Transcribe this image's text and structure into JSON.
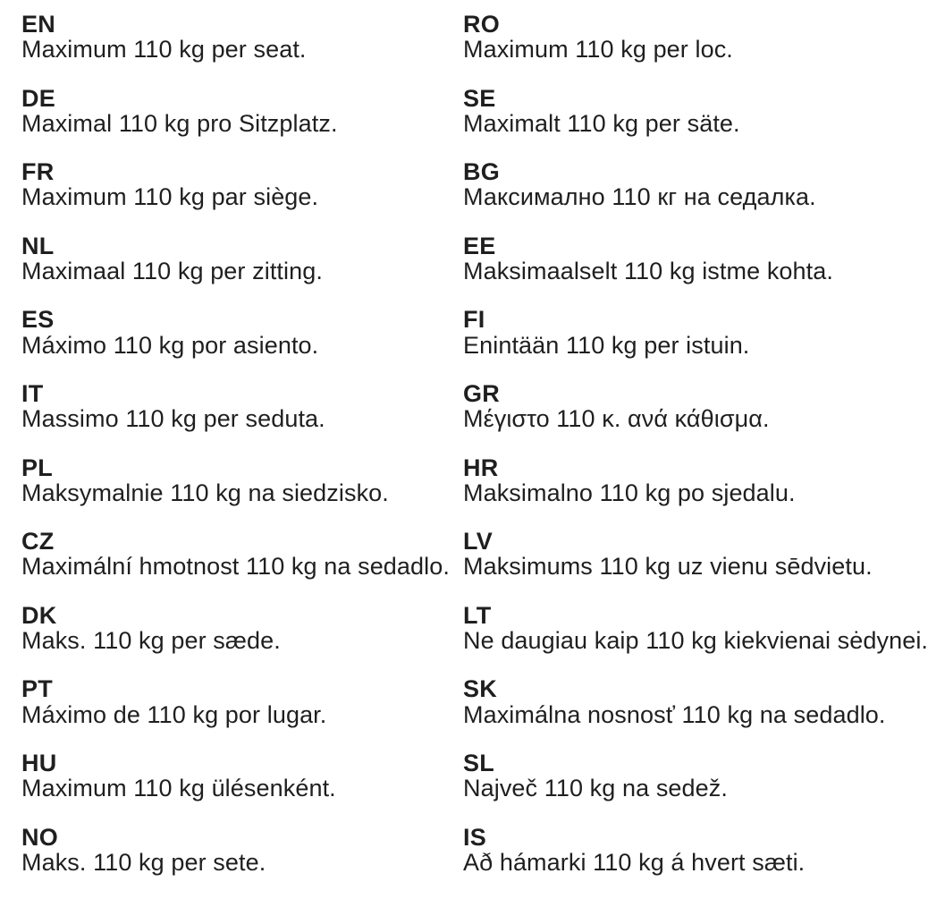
{
  "page": {
    "background": "#ffffff",
    "text_color": "#1f1f1f"
  },
  "columns": [
    {
      "entries": [
        {
          "code": "EN",
          "text": "Maximum 110 kg per seat."
        },
        {
          "code": "DE",
          "text": "Maximal 110 kg pro Sitzplatz."
        },
        {
          "code": "FR",
          "text": "Maximum 110 kg par siège."
        },
        {
          "code": "NL",
          "text": "Maximaal 110 kg per zitting."
        },
        {
          "code": "ES",
          "text": "Máximo 110 kg por asiento."
        },
        {
          "code": "IT",
          "text": "Massimo 110 kg per seduta."
        },
        {
          "code": "PL",
          "text": "Maksymalnie 110 kg na siedzisko."
        },
        {
          "code": "CZ",
          "text": "Maximální hmotnost 110 kg na sedadlo."
        },
        {
          "code": "DK",
          "text": "Maks. 110 kg per sæde."
        },
        {
          "code": "PT",
          "text": "Máximo de 110 kg por lugar."
        },
        {
          "code": "HU",
          "text": "Maximum 110 kg ülésenként."
        },
        {
          "code": "NO",
          "text": "Maks. 110 kg per sete."
        }
      ]
    },
    {
      "entries": [
        {
          "code": "RO",
          "text": "Maximum 110 kg per loc."
        },
        {
          "code": "SE",
          "text": "Maximalt 110 kg per säte."
        },
        {
          "code": "BG",
          "text": "Максимално 110 кг на седалка."
        },
        {
          "code": "EE",
          "text": "Maksimaalselt 110 kg istme kohta."
        },
        {
          "code": "FI",
          "text": "Enintään 110 kg per istuin."
        },
        {
          "code": "GR",
          "text": "Μέγιστο 110 κ. ανά κάθισμα."
        },
        {
          "code": "HR",
          "text": "Maksimalno 110 kg po sjedalu."
        },
        {
          "code": "LV",
          "text": "Maksimums 110 kg uz vienu sēdvietu."
        },
        {
          "code": "LT",
          "text": "Ne daugiau kaip 110 kg kiekvienai sėdynei."
        },
        {
          "code": "SK",
          "text": "Maximálna nosnosť 110 kg na sedadlo."
        },
        {
          "code": "SL",
          "text": "Največ 110 kg na sedež."
        },
        {
          "code": "IS",
          "text": "Að hámarki 110 kg á hvert sæti."
        }
      ]
    }
  ]
}
